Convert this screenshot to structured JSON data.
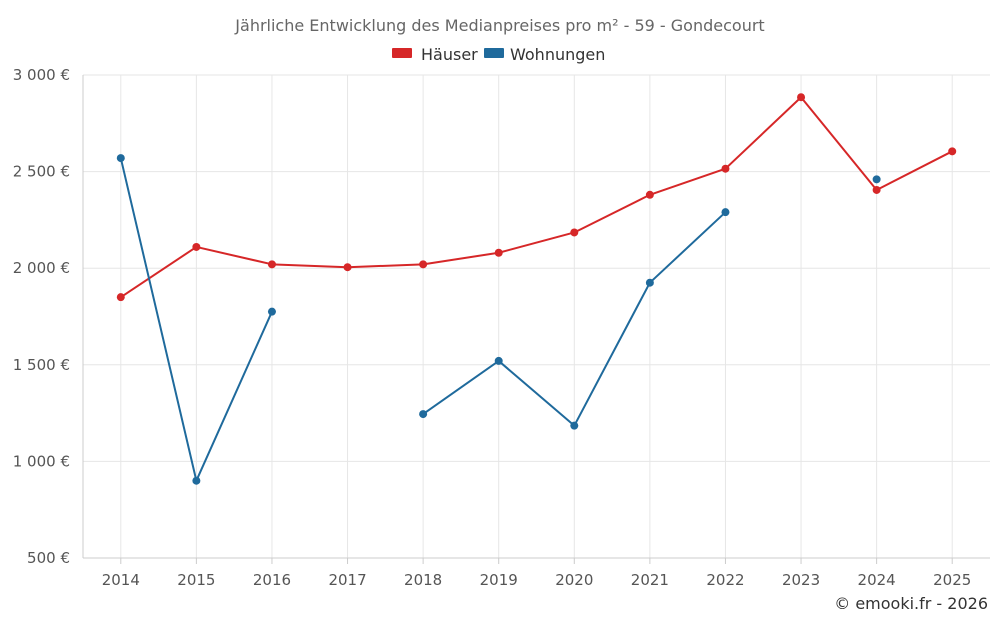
{
  "chart_data": {
    "type": "line",
    "title": "Jährliche Entwicklung des Medianpreises pro m² - 59 - Gondecourt",
    "categories": [
      "2014",
      "2015",
      "2016",
      "2017",
      "2018",
      "2019",
      "2020",
      "2021",
      "2022",
      "2023",
      "2024",
      "2025"
    ],
    "ylim": [
      500,
      3000
    ],
    "yticks": [
      500,
      1000,
      1500,
      2000,
      2500,
      3000
    ],
    "ytick_labels": [
      "500 €",
      "1 000 €",
      "1 500 €",
      "2 000 €",
      "2 500 €",
      "3 000 €"
    ],
    "grid": true,
    "legend_position": "top-center",
    "series": [
      {
        "name": "Häuser",
        "color": "#d62728",
        "values": [
          1850,
          2110,
          2020,
          2005,
          2020,
          2080,
          2185,
          2380,
          2515,
          2885,
          2405,
          2605
        ]
      },
      {
        "name": "Wohnungen",
        "color": "#1f6a9c",
        "values": [
          2570,
          900,
          1775,
          null,
          1245,
          1520,
          1185,
          1925,
          2290,
          null,
          2460,
          null
        ]
      }
    ]
  },
  "credit": "© emooki.fr - 2026"
}
